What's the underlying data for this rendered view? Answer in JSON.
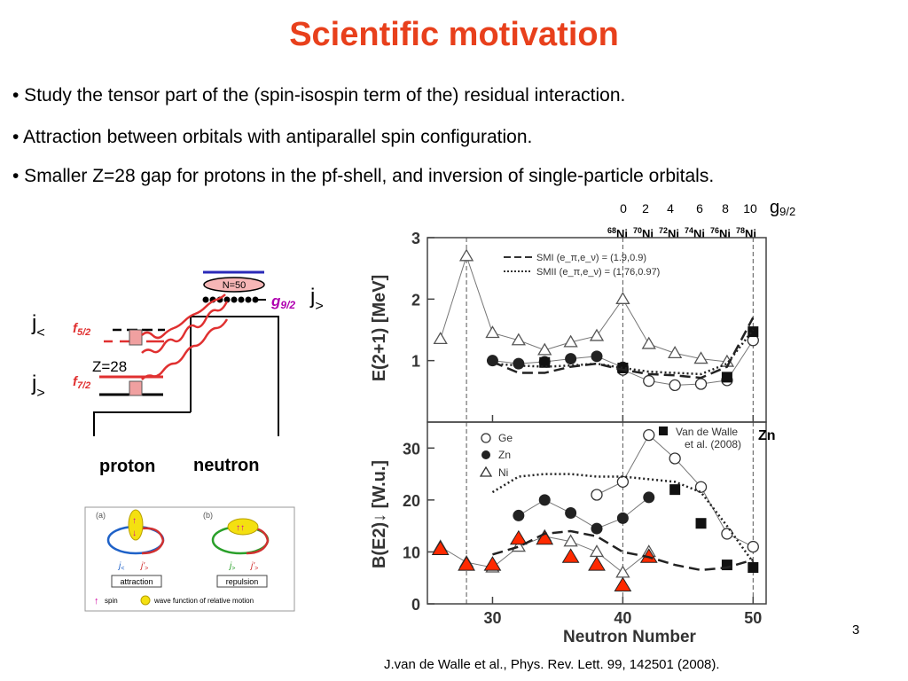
{
  "slide": {
    "title": "Scientific motivation",
    "bullets": [
      "•  Study the tensor part of the (spin-isospin term of the) residual interaction.",
      "• Attraction between orbitals with antiparallel spin configuration.",
      "• Smaller Z=28 gap for protons in the pf-shell, and inversion of single-particle orbitals."
    ],
    "page_number": "3",
    "reference": "J.van de Walle et al., Phys. Rev. Lett. 99, 142501 (2008)."
  },
  "top_axis": {
    "numbers": [
      "0",
      "2",
      "4",
      "6",
      "8",
      "10"
    ],
    "g_label": "g",
    "g_sub": "9/2",
    "isotopes": [
      {
        "mass": "68",
        "el": "Ni"
      },
      {
        "mass": "70",
        "el": "Ni"
      },
      {
        "mass": "72",
        "el": "Ni"
      },
      {
        "mass": "74",
        "el": "Ni"
      },
      {
        "mass": "76",
        "el": "Ni"
      },
      {
        "mass": "78",
        "el": "Ni"
      }
    ]
  },
  "shell_diagram": {
    "n50": "N=50",
    "g_label": "g",
    "g_sub": "9/2",
    "j_upper": "j",
    "j_upper_sub": ">",
    "j_left_top": "j",
    "j_left_top_sub": "<",
    "j_left_bottom": "j",
    "j_left_bottom_sub": ">",
    "f52": "f",
    "f52_sub": "5/2",
    "f72": "f",
    "f72_sub": "7/2",
    "z28": "Z=28",
    "proton": "proton",
    "neutron": "neutron"
  },
  "inset": {
    "a": "(a)",
    "b": "(b)",
    "attraction": "attraction",
    "repulsion": "repulsion",
    "spin": "spin",
    "wave": "wave function of relative motion",
    "j_less": "j",
    "j_less_sub": "<",
    "j_more": "j",
    "j_more_sub": ">",
    "j_prime": "j'",
    "j_prime_sub": ">"
  },
  "chart_data": [
    {
      "type": "line",
      "title": "",
      "xlabel": "Neutron Number",
      "ylabel": "E(2+1) [MeV]",
      "xlim": [
        25,
        51
      ],
      "ylim": [
        0,
        3
      ],
      "x_ticks": [
        "30",
        "40",
        "50"
      ],
      "y_ticks": [
        "1",
        "2",
        "3"
      ],
      "vlines": [
        28,
        40,
        50
      ],
      "legend": [
        "SMI (e_π,e_ν) = (1.9,0.9)",
        "SMII (e_π,e_ν) = (1.76,0.97)"
      ],
      "series": [
        {
          "name": "Ni",
          "marker": "open-triangle",
          "x": [
            26,
            28,
            30,
            32,
            34,
            36,
            38,
            40,
            42,
            44,
            46,
            48
          ],
          "y": [
            1.35,
            2.7,
            1.45,
            1.33,
            1.17,
            1.3,
            1.4,
            2.0,
            1.27,
            1.12,
            1.03,
            0.98
          ]
        },
        {
          "name": "Ge",
          "marker": "open-circle",
          "x": [
            40,
            42,
            44,
            46,
            48,
            50
          ],
          "y": [
            0.85,
            0.67,
            0.6,
            0.62,
            0.68,
            1.33
          ]
        },
        {
          "name": "Zn",
          "marker": "filled-circle",
          "x": [
            30,
            32,
            34,
            36,
            38,
            40
          ],
          "y": [
            1.0,
            0.95,
            0.98,
            1.03,
            1.07,
            0.89
          ]
        },
        {
          "name": "Van de Walle et al. (2008)",
          "marker": "filled-square",
          "x": [
            34,
            40,
            48,
            50
          ],
          "y": [
            0.97,
            0.88,
            0.73,
            1.47
          ]
        },
        {
          "name": "SMI (e_π,e_ν) = (1.9,0.9)",
          "style": "dashed",
          "x": [
            30,
            32,
            34,
            36,
            38,
            40,
            42,
            44,
            46,
            48,
            50
          ],
          "y": [
            0.98,
            0.8,
            0.8,
            0.9,
            0.95,
            0.85,
            0.78,
            0.76,
            0.72,
            0.9,
            1.7
          ]
        },
        {
          "name": "SMII (e_π,e_ν) = (1.76,0.97)",
          "style": "dotted",
          "x": [
            30,
            32,
            34,
            36,
            38,
            40,
            42,
            44,
            46,
            48,
            50
          ],
          "y": [
            0.95,
            0.92,
            0.9,
            0.92,
            0.95,
            0.88,
            0.82,
            0.8,
            0.78,
            0.95,
            1.5
          ]
        }
      ]
    },
    {
      "type": "line",
      "title": "",
      "xlabel": "Neutron Number",
      "ylabel": "B(E2)↓ [W.u.]",
      "xlim": [
        25,
        51
      ],
      "ylim": [
        0,
        35
      ],
      "x_ticks": [
        "30",
        "40",
        "50"
      ],
      "y_ticks": [
        "0",
        "10",
        "20",
        "30"
      ],
      "vlines": [
        28,
        40,
        50
      ],
      "legend": [
        "Ge",
        "Zn",
        "Ni",
        "Van de Walle et al. (2008)"
      ],
      "legend_text": {
        "ge": "Ge",
        "zn": "Zn",
        "ni": "Ni",
        "vdw1": "Van de Walle",
        "vdw2": "et al. (2008)",
        "zn_side": "Zn"
      },
      "series": [
        {
          "name": "Ni",
          "marker": "open-triangle",
          "x": [
            26,
            28,
            30,
            32,
            34,
            36,
            38,
            40,
            42
          ],
          "y": [
            11,
            8,
            7,
            11,
            13,
            12,
            10,
            6,
            10
          ]
        },
        {
          "name": "Ge",
          "marker": "open-circle",
          "x": [
            38,
            40,
            42,
            44,
            46,
            48,
            50
          ],
          "y": [
            21,
            23.5,
            32.5,
            28,
            22.5,
            13.5,
            11
          ]
        },
        {
          "name": "Zn",
          "marker": "filled-circle",
          "x": [
            32,
            34,
            36,
            38,
            40,
            42
          ],
          "y": [
            17,
            20,
            17.5,
            14.5,
            16.5,
            20.5
          ]
        },
        {
          "name": "Van de Walle et al. (2008)",
          "marker": "filled-square",
          "x": [
            44,
            46,
            48,
            50
          ],
          "y": [
            22,
            15.5,
            7.5,
            7
          ]
        },
        {
          "name": "red-triangles",
          "marker": "filled-red-triangle",
          "x": [
            26,
            28,
            30,
            32,
            34,
            36,
            38,
            40,
            42
          ],
          "y": [
            10.5,
            7.5,
            7.5,
            12.5,
            12.5,
            9,
            7.5,
            3.5,
            9
          ]
        },
        {
          "name": "SMI",
          "style": "dashed",
          "x": [
            30,
            32,
            34,
            36,
            38,
            40,
            42,
            44,
            46,
            48,
            50
          ],
          "y": [
            9.5,
            11,
            13.5,
            14,
            13,
            10,
            9,
            7.5,
            6.5,
            7,
            8.5
          ]
        },
        {
          "name": "SMII",
          "style": "dotted",
          "x": [
            30,
            32,
            34,
            36,
            38,
            40,
            42,
            44,
            46,
            48,
            50
          ],
          "y": [
            21.5,
            24.5,
            25,
            25,
            24.5,
            24.5,
            24,
            23.5,
            21.5,
            15,
            8
          ]
        }
      ]
    }
  ]
}
